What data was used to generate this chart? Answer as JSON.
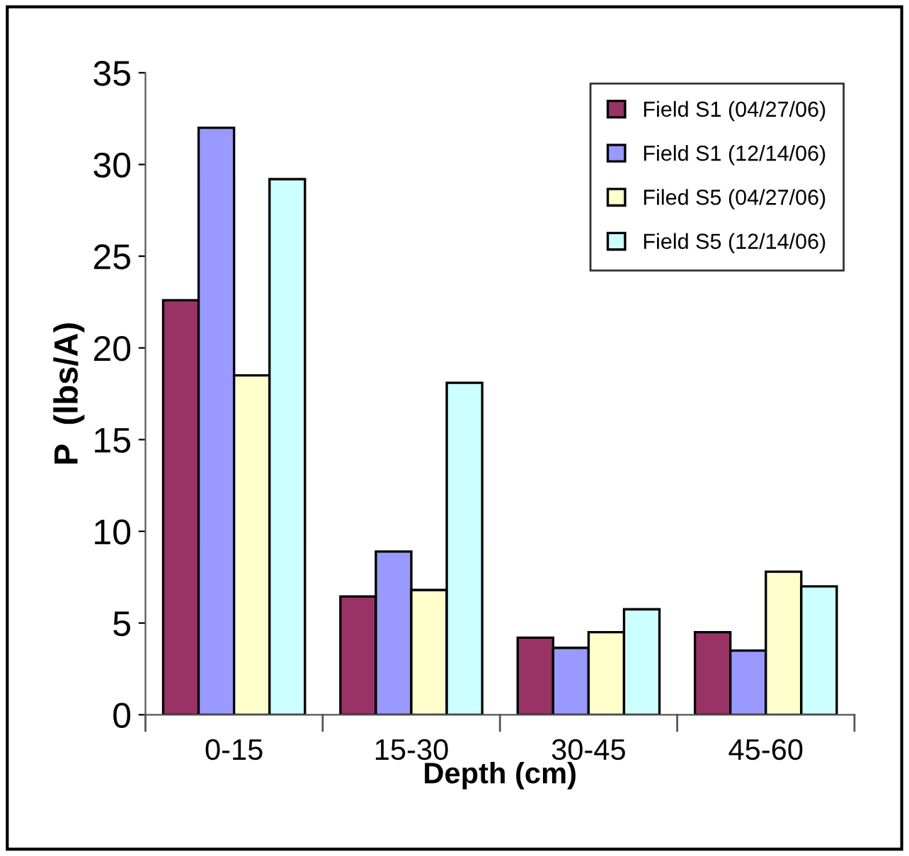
{
  "chart_data": {
    "type": "bar",
    "xlabel": "Depth (cm)",
    "ylabel": "P  (lbs/A)",
    "categories": [
      "0-15",
      "15-30",
      "30-45",
      "45-60"
    ],
    "series": [
      {
        "name": "Field S1 (04/27/06)",
        "color": "#993366",
        "values": [
          22.6,
          6.45,
          4.2,
          4.5
        ]
      },
      {
        "name": "Field S1 (12/14/06)",
        "color": "#9999ff",
        "values": [
          32.0,
          8.9,
          3.65,
          3.5
        ]
      },
      {
        "name": "Filed S5 (04/27/06)",
        "color": "#ffffcc",
        "values": [
          18.5,
          6.8,
          4.5,
          7.8
        ]
      },
      {
        "name": "Field S5 (12/14/06)",
        "color": "#ccffff",
        "values": [
          29.2,
          18.1,
          5.75,
          7.0
        ]
      }
    ],
    "ylim": [
      0,
      35
    ],
    "yticks": [
      0,
      5,
      10,
      15,
      20,
      25,
      30,
      35
    ],
    "grid": false,
    "legend": "top right"
  }
}
